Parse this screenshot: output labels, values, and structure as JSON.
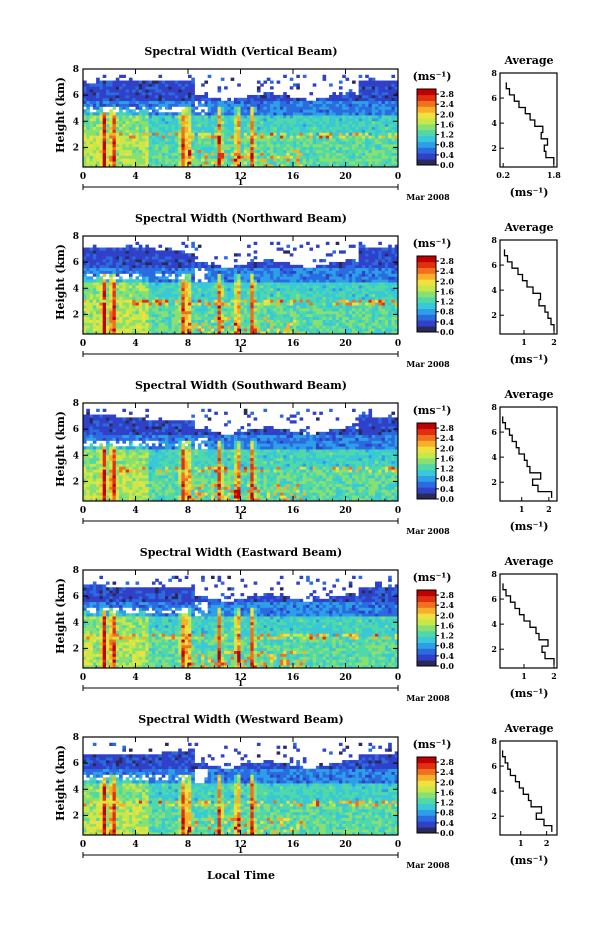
{
  "figure": {
    "x_axis_label": "Local Time",
    "y_axis_label": "Height (km)",
    "date_label": "Mar 2008",
    "date_day": "1",
    "colorbar_unit": "(ms⁻¹)",
    "average_title": "Average",
    "average_xlabel": "(ms⁻¹)"
  },
  "colors": {
    "colormap": [
      "#2a2a5a",
      "#3040c8",
      "#2b6be0",
      "#2d9fe8",
      "#38c8d8",
      "#50d8a8",
      "#88e070",
      "#c8e848",
      "#f0e040",
      "#f8b028",
      "#f07020",
      "#e03010",
      "#c00000"
    ]
  },
  "chart_data": [
    {
      "type": "heatmap",
      "title": "Spectral Width (Vertical Beam)",
      "xlabel": "",
      "ylabel": "Height (km)",
      "xlim": [
        0,
        24
      ],
      "ylim": [
        0.5,
        8
      ],
      "x_ticks": [
        "0",
        "4",
        "8",
        "12",
        "16",
        "20",
        "0"
      ],
      "y_ticks": [
        "2",
        "4",
        "6",
        "8"
      ],
      "colorbar": {
        "unit": "(ms⁻¹)",
        "ticks": [
          "0.0",
          "0.4",
          "0.8",
          "1.2",
          "1.6",
          "2.0",
          "2.4",
          "2.8"
        ],
        "range": [
          0,
          3.0
        ]
      },
      "profile": {
        "title": "Average",
        "xlabel": "(ms⁻¹)",
        "xlim": [
          0.1,
          1.9
        ],
        "x_ticks": [
          "0.2",
          "1.8"
        ],
        "y_ticks": [
          "2",
          "4",
          "6",
          "8"
        ],
        "heights": [
          1.0,
          1.5,
          2.0,
          2.5,
          3.0,
          3.5,
          4.0,
          4.5,
          5.0,
          5.5,
          6.0,
          6.5,
          7.0
        ],
        "values": [
          1.8,
          1.55,
          1.5,
          1.6,
          1.4,
          1.45,
          1.2,
          1.05,
          0.9,
          0.7,
          0.55,
          0.4,
          0.3
        ]
      }
    },
    {
      "type": "heatmap",
      "title": "Spectral Width (Northward Beam)",
      "xlabel": "",
      "ylabel": "Height (km)",
      "xlim": [
        0,
        24
      ],
      "ylim": [
        0.5,
        8
      ],
      "x_ticks": [
        "0",
        "4",
        "8",
        "12",
        "16",
        "20",
        "0"
      ],
      "y_ticks": [
        "2",
        "4",
        "6",
        "8"
      ],
      "colorbar": {
        "unit": "(ms⁻¹)",
        "ticks": [
          "0.0",
          "0.4",
          "0.8",
          "1.2",
          "1.6",
          "2.0",
          "2.4",
          "2.8"
        ],
        "range": [
          0,
          3.0
        ]
      },
      "profile": {
        "title": "Average",
        "xlabel": "(ms⁻¹)",
        "xlim": [
          0.2,
          2.1
        ],
        "x_ticks": [
          "1",
          "2"
        ],
        "y_ticks": [
          "2",
          "4",
          "6",
          "8"
        ],
        "heights": [
          1.0,
          1.5,
          2.0,
          2.5,
          3.0,
          3.5,
          4.0,
          4.5,
          5.0,
          5.5,
          6.0,
          6.5,
          7.0
        ],
        "values": [
          2.0,
          1.9,
          1.8,
          1.7,
          1.5,
          1.55,
          1.3,
          1.1,
          0.95,
          0.8,
          0.6,
          0.45,
          0.35
        ]
      }
    },
    {
      "type": "heatmap",
      "title": "Spectral Width (Southward Beam)",
      "xlabel": "",
      "ylabel": "Height (km)",
      "xlim": [
        0,
        24
      ],
      "ylim": [
        0.5,
        8
      ],
      "x_ticks": [
        "0",
        "4",
        "8",
        "12",
        "16",
        "20",
        "0"
      ],
      "y_ticks": [
        "2",
        "4",
        "6",
        "8"
      ],
      "colorbar": {
        "unit": "(ms⁻¹)",
        "ticks": [
          "0.0",
          "0.4",
          "0.8",
          "1.2",
          "1.6",
          "2.0",
          "2.4",
          "2.8"
        ],
        "range": [
          0,
          3.0
        ]
      },
      "profile": {
        "title": "Average",
        "xlabel": "(ms⁻¹)",
        "xlim": [
          0.2,
          2.3
        ],
        "x_ticks": [
          "1",
          "2"
        ],
        "y_ticks": [
          "2",
          "4",
          "6",
          "8"
        ],
        "heights": [
          1.0,
          1.5,
          2.0,
          2.5,
          3.0,
          3.5,
          4.0,
          4.5,
          5.0,
          5.5,
          6.0,
          6.5,
          7.0
        ],
        "values": [
          2.1,
          1.6,
          1.4,
          1.7,
          1.3,
          1.2,
          1.1,
          0.9,
          0.8,
          0.65,
          0.55,
          0.4,
          0.3
        ]
      }
    },
    {
      "type": "heatmap",
      "title": "Spectral Width (Eastward Beam)",
      "xlabel": "",
      "ylabel": "Height (km)",
      "xlim": [
        0,
        24
      ],
      "ylim": [
        0.5,
        8
      ],
      "x_ticks": [
        "0",
        "4",
        "8",
        "12",
        "16",
        "20",
        "0"
      ],
      "y_ticks": [
        "2",
        "4",
        "6",
        "8"
      ],
      "colorbar": {
        "unit": "(ms⁻¹)",
        "ticks": [
          "0.0",
          "0.4",
          "0.8",
          "1.2",
          "1.6",
          "2.0",
          "2.4",
          "2.8"
        ],
        "range": [
          0,
          3.0
        ]
      },
      "profile": {
        "title": "Average",
        "xlabel": "(ms⁻¹)",
        "xlim": [
          0.2,
          2.1
        ],
        "x_ticks": [
          "1",
          "2"
        ],
        "y_ticks": [
          "2",
          "4",
          "6",
          "8"
        ],
        "heights": [
          1.0,
          1.5,
          2.0,
          2.5,
          3.0,
          3.5,
          4.0,
          4.5,
          5.0,
          5.5,
          6.0,
          6.5,
          7.0
        ],
        "values": [
          2.0,
          1.7,
          1.6,
          1.8,
          1.5,
          1.4,
          1.2,
          1.0,
          0.85,
          0.7,
          0.55,
          0.4,
          0.3
        ]
      }
    },
    {
      "type": "heatmap",
      "title": "Spectral Width (Westward Beam)",
      "xlabel": "Local Time",
      "ylabel": "Height (km)",
      "xlim": [
        0,
        24
      ],
      "ylim": [
        0.5,
        8
      ],
      "x_ticks": [
        "0",
        "4",
        "8",
        "12",
        "16",
        "20",
        "0"
      ],
      "y_ticks": [
        "2",
        "4",
        "6",
        "8"
      ],
      "colorbar": {
        "unit": "(ms⁻¹)",
        "ticks": [
          "0.0",
          "0.4",
          "0.8",
          "1.2",
          "1.6",
          "2.0",
          "2.4",
          "2.8"
        ],
        "range": [
          0,
          3.0
        ]
      },
      "profile": {
        "title": "Average",
        "xlabel": "(ms⁻¹)",
        "xlim": [
          0.2,
          2.4
        ],
        "x_ticks": [
          "1",
          "2"
        ],
        "y_ticks": [
          "2",
          "4",
          "6",
          "8"
        ],
        "heights": [
          1.0,
          1.5,
          2.0,
          2.5,
          3.0,
          3.5,
          4.0,
          4.5,
          5.0,
          5.5,
          6.0,
          6.5,
          7.0
        ],
        "values": [
          2.2,
          1.9,
          1.6,
          1.8,
          1.4,
          1.3,
          1.1,
          0.95,
          0.8,
          0.6,
          0.5,
          0.4,
          0.3
        ]
      }
    }
  ]
}
